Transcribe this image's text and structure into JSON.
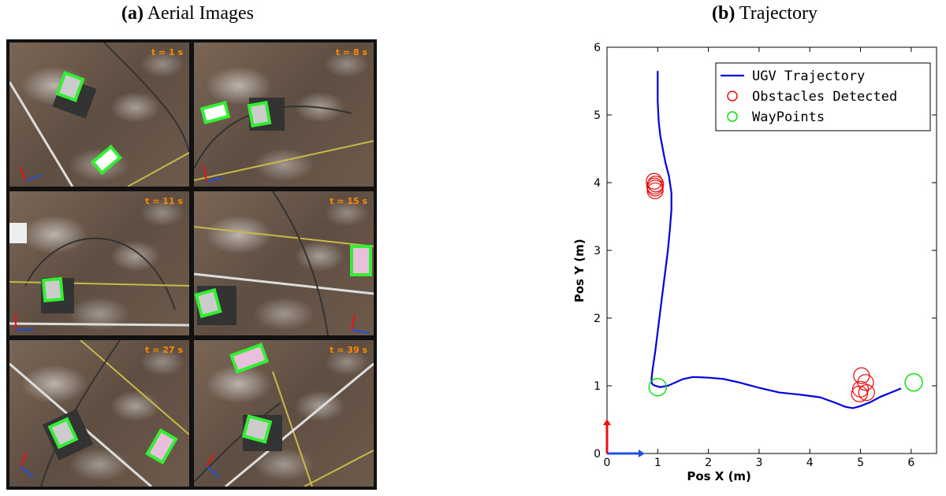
{
  "captions": {
    "a_letter": "(a)",
    "a_text": " Aerial Images",
    "b_letter": "(b)",
    "b_text": " Trajectory"
  },
  "panels": [
    {
      "time": "t = 1 s"
    },
    {
      "time": "t = 8 s"
    },
    {
      "time": "t = 11 s"
    },
    {
      "time": "t = 15 s"
    },
    {
      "time": "t = 27 s"
    },
    {
      "time": "t = 39 s"
    }
  ],
  "chart_data": {
    "type": "line",
    "title": "",
    "xlabel": "Pos X (m)",
    "ylabel": "Pos Y (m)",
    "xlim": [
      0,
      6.5
    ],
    "ylim": [
      0,
      6
    ],
    "xticks": [
      "0",
      "1",
      "2",
      "3",
      "4",
      "5",
      "6"
    ],
    "yticks": [
      "0",
      "1",
      "2",
      "3",
      "4",
      "5",
      "6"
    ],
    "grid": false,
    "legend_position": "top-right",
    "colors": {
      "trajectory": "#0000dd",
      "obstacles": "#ee0000",
      "waypoints": "#00dd00",
      "axis_x": "#1f4fe0",
      "axis_y": "#ee1111"
    },
    "series": [
      {
        "name": "UGV Trajectory",
        "x": [
          1.0,
          1.0,
          1.02,
          1.05,
          1.1,
          1.15,
          1.22,
          1.27,
          1.27,
          1.24,
          1.2,
          1.15,
          1.1,
          1.05,
          1.0,
          0.95,
          0.9,
          0.88,
          0.88,
          0.9,
          0.95,
          1.05,
          1.2,
          1.35,
          1.5,
          1.7,
          2.0,
          2.3,
          2.6,
          3.0,
          3.4,
          3.8,
          4.2,
          4.5,
          4.7,
          4.85,
          5.0,
          5.2,
          5.4,
          5.6,
          5.8
        ],
        "y": [
          5.65,
          5.2,
          4.9,
          4.7,
          4.5,
          4.3,
          4.1,
          3.85,
          3.6,
          3.3,
          3.0,
          2.7,
          2.4,
          2.1,
          1.8,
          1.5,
          1.25,
          1.12,
          1.05,
          1.02,
          1.0,
          0.98,
          1.0,
          1.05,
          1.1,
          1.13,
          1.12,
          1.1,
          1.05,
          0.97,
          0.9,
          0.87,
          0.83,
          0.75,
          0.69,
          0.67,
          0.7,
          0.76,
          0.84,
          0.9,
          0.96
        ]
      },
      {
        "name": "Obstacles Detected",
        "points": [
          [
            0.95,
            3.92
          ],
          [
            0.94,
            3.95
          ],
          [
            0.96,
            3.98
          ],
          [
            0.93,
            4.02
          ],
          [
            0.95,
            3.88
          ],
          [
            5.02,
            1.15
          ],
          [
            5.1,
            1.05
          ],
          [
            5.0,
            0.95
          ],
          [
            5.12,
            0.9
          ],
          [
            4.98,
            0.88
          ]
        ]
      },
      {
        "name": "WayPoints",
        "points": [
          [
            1.0,
            0.98
          ],
          [
            6.05,
            1.05
          ]
        ]
      }
    ]
  }
}
